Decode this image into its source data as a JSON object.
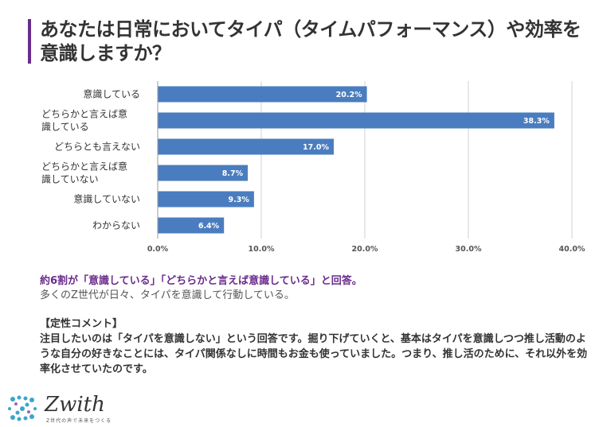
{
  "title": "あなたは日常においてタイパ（タイムパフォーマンス）や効率を意識しますか？",
  "chart_data": {
    "type": "bar",
    "orientation": "horizontal",
    "categories": [
      [
        "意識している"
      ],
      [
        "どちらかと言えば意",
        "識している"
      ],
      [
        "どちらとも言えない"
      ],
      [
        "どちらかと言えば意",
        "識していない"
      ],
      [
        "意識していない"
      ],
      [
        "わからない"
      ]
    ],
    "values": [
      20.2,
      38.3,
      17.0,
      8.7,
      9.3,
      6.4
    ],
    "value_labels": [
      "20.2%",
      "38.3%",
      "17.0%",
      "8.7%",
      "9.3%",
      "6.4%"
    ],
    "xlim": [
      0,
      40
    ],
    "xticks": [
      0,
      10,
      20,
      30,
      40
    ],
    "xtick_labels": [
      "0.0%",
      "10.0%",
      "20.0%",
      "30.0%",
      "40.0%"
    ],
    "grid": true,
    "bar_color": "#4a7dbf"
  },
  "summary": {
    "headline": "約6割が「意識している」「どちらかと言えば意識している」と回答。",
    "sub": "多くのZ世代が日々、タイパを意識して行動している。"
  },
  "comment": {
    "heading": "【定性コメント】",
    "body": "注目したいのは「タイパを意識しない」という回答です。掘り下げていくと、基本はタイパを意識しつつ推し活動のような自分の好きなことには、タイパ関係なしに時間もお金も使っていました。つまり、推し活のために、それ以外を効率化させていたのです。"
  },
  "logo": {
    "name": "Zwith",
    "tagline": "Z世代の声で未来をつくる"
  },
  "colors": {
    "accent": "#6a2c8c",
    "bar": "#4a7dbf",
    "logo_dots": "#3aa6c9"
  }
}
